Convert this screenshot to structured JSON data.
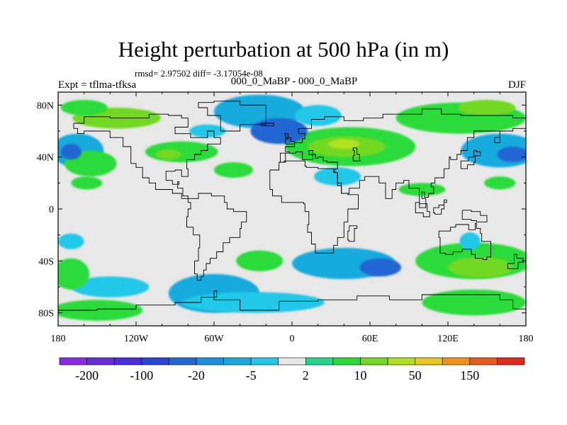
{
  "title": "Height perturbation at 500 hPa (in m)",
  "stats": "rmsd= 2.97502 diff= -3.17054e-08",
  "expt": "Expt = tflma-tfksa",
  "cases": "000_0_MaBP - 000_0_MaBP",
  "season": "DJF",
  "chart_data": {
    "type": "heatmap",
    "title": "Height perturbation at 500 hPa (in m)",
    "xlabel": "",
    "ylabel": "",
    "xlim": [
      -180,
      180
    ],
    "ylim": [
      -90,
      90
    ],
    "x_ticks": [
      {
        "value": -180,
        "label": "180"
      },
      {
        "value": -120,
        "label": "120W"
      },
      {
        "value": -60,
        "label": "60W"
      },
      {
        "value": 0,
        "label": "0"
      },
      {
        "value": 60,
        "label": "60E"
      },
      {
        "value": 120,
        "label": "120E"
      },
      {
        "value": 180,
        "label": "180"
      }
    ],
    "y_ticks": [
      {
        "value": 80,
        "label": "80N"
      },
      {
        "value": 40,
        "label": "40N"
      },
      {
        "value": 0,
        "label": "0"
      },
      {
        "value": -40,
        "label": "40S"
      },
      {
        "value": -80,
        "label": "80S"
      }
    ],
    "colorbar": {
      "levels": [
        -200,
        -150,
        -100,
        -50,
        -20,
        -10,
        -5,
        -2,
        2,
        5,
        10,
        20,
        50,
        100,
        150,
        200
      ],
      "labels": [
        "-200",
        "-100",
        "-20",
        "-5",
        "2",
        "10",
        "50",
        "150"
      ],
      "colors": [
        "#8a2be2",
        "#6a2cd8",
        "#4b2ce0",
        "#2a44d8",
        "#2266d4",
        "#1e8ee0",
        "#19aadd",
        "#22c8e8",
        "#e8e8e8",
        "#25d58a",
        "#2bdb3a",
        "#72d820",
        "#b0e020",
        "#e6c820",
        "#f0901e",
        "#ea5a1e",
        "#e02a1e"
      ]
    },
    "background_color": "#e8e8e8",
    "regions": [
      {
        "lon": -135,
        "lat": 70,
        "rx": 34,
        "ry": 8,
        "value": 10
      },
      {
        "lon": -160,
        "lat": 78,
        "rx": 18,
        "ry": 6,
        "value": 7
      },
      {
        "lon": -165,
        "lat": 45,
        "rx": 20,
        "ry": 13,
        "value": -10
      },
      {
        "lon": -170,
        "lat": 44,
        "rx": 8,
        "ry": 6,
        "value": -25
      },
      {
        "lon": -158,
        "lat": 20,
        "rx": 12,
        "ry": 5,
        "value": 5
      },
      {
        "lon": -155,
        "lat": 35,
        "rx": 20,
        "ry": 10,
        "value": 5
      },
      {
        "lon": -85,
        "lat": 44,
        "rx": 28,
        "ry": 8,
        "value": 5
      },
      {
        "lon": -95,
        "lat": 42,
        "rx": 10,
        "ry": 4,
        "value": 10
      },
      {
        "lon": -45,
        "lat": 30,
        "rx": 15,
        "ry": 6,
        "value": 5
      },
      {
        "lon": -25,
        "lat": 75,
        "rx": 35,
        "ry": 13,
        "value": -8
      },
      {
        "lon": -10,
        "lat": 60,
        "rx": 22,
        "ry": 10,
        "value": -25
      },
      {
        "lon": -65,
        "lat": 60,
        "rx": 14,
        "ry": 5,
        "value": -5
      },
      {
        "lon": 20,
        "lat": 72,
        "rx": 18,
        "ry": 8,
        "value": -5
      },
      {
        "lon": 45,
        "lat": 48,
        "rx": 50,
        "ry": 15,
        "value": 6
      },
      {
        "lon": 42,
        "lat": 48,
        "rx": 30,
        "ry": 8,
        "value": 12
      },
      {
        "lon": 40,
        "lat": 50,
        "rx": 12,
        "ry": 4,
        "value": 30
      },
      {
        "lon": 35,
        "lat": 25,
        "rx": 18,
        "ry": 7,
        "value": -5
      },
      {
        "lon": 100,
        "lat": 15,
        "rx": 18,
        "ry": 5,
        "value": 5
      },
      {
        "lon": 130,
        "lat": 70,
        "rx": 50,
        "ry": 12,
        "value": 6
      },
      {
        "lon": 150,
        "lat": 78,
        "rx": 22,
        "ry": 6,
        "value": 12
      },
      {
        "lon": 160,
        "lat": 45,
        "rx": 30,
        "ry": 13,
        "value": -8
      },
      {
        "lon": 170,
        "lat": 42,
        "rx": 12,
        "ry": 6,
        "value": -25
      },
      {
        "lon": 160,
        "lat": 20,
        "rx": 12,
        "ry": 5,
        "value": 5
      },
      {
        "lon": -170,
        "lat": -25,
        "rx": 10,
        "ry": 6,
        "value": -5
      },
      {
        "lon": -25,
        "lat": -40,
        "rx": 18,
        "ry": 8,
        "value": 5
      },
      {
        "lon": 40,
        "lat": -42,
        "rx": 40,
        "ry": 12,
        "value": -8
      },
      {
        "lon": 68,
        "lat": -45,
        "rx": 16,
        "ry": 7,
        "value": -25
      },
      {
        "lon": 140,
        "lat": -40,
        "rx": 45,
        "ry": 14,
        "value": 6
      },
      {
        "lon": 145,
        "lat": -45,
        "rx": 25,
        "ry": 8,
        "value": 12
      },
      {
        "lon": 137,
        "lat": -25,
        "rx": 8,
        "ry": 7,
        "value": -5
      },
      {
        "lon": -170,
        "lat": -50,
        "rx": 14,
        "ry": 12,
        "value": 8
      },
      {
        "lon": -140,
        "lat": -60,
        "rx": 30,
        "ry": 8,
        "value": -5
      },
      {
        "lon": -60,
        "lat": -65,
        "rx": 35,
        "ry": 15,
        "value": -8
      },
      {
        "lon": -30,
        "lat": -72,
        "rx": 55,
        "ry": 8,
        "value": -5
      },
      {
        "lon": -150,
        "lat": -78,
        "rx": 35,
        "ry": 8,
        "value": 5
      },
      {
        "lon": 140,
        "lat": -72,
        "rx": 40,
        "ry": 10,
        "value": 5
      }
    ]
  }
}
